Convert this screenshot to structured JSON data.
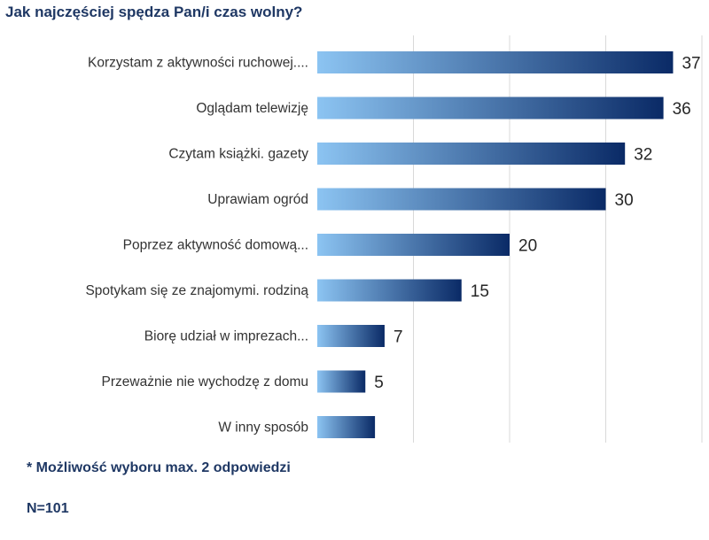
{
  "title": "Jak najczęściej spędza Pan/i czas wolny?",
  "chart_data": {
    "type": "bar",
    "orientation": "horizontal",
    "categories": [
      "Korzystam z aktywności ruchowej....",
      "Oglądam telewizję",
      "Czytam książki. gazety",
      "Uprawiam ogród",
      "Poprzez aktywność domową...",
      "Spotykam się ze znajomymi. rodziną",
      "Biorę udział w imprezach...",
      "Przeważnie nie wychodzę z domu",
      "W inny sposób"
    ],
    "values": [
      37,
      36,
      32,
      30,
      20,
      15,
      7,
      5,
      6
    ],
    "value_labels": [
      "37",
      "36",
      "32",
      "30",
      "20",
      "15",
      "7",
      "5",
      ""
    ],
    "xlim": [
      0,
      40
    ],
    "grid": true,
    "bar_gradient": [
      "#8cc4f2",
      "#0a2a66"
    ]
  },
  "note": "* Możliwość wyboru max. 2 odpowiedzi",
  "n_label": "N=101"
}
